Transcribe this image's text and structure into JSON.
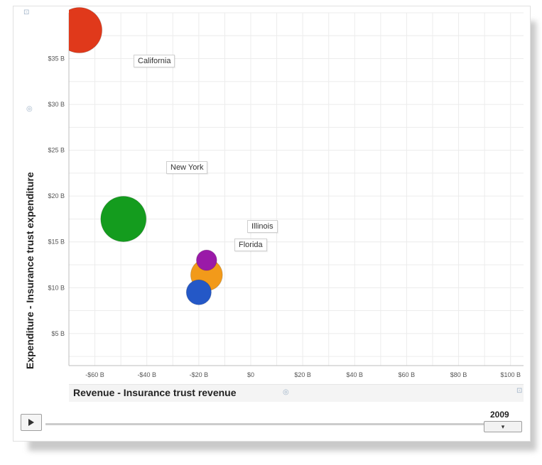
{
  "chart_data": {
    "type": "scatter",
    "title": "",
    "xlabel": "Revenue - Insurance trust revenue",
    "ylabel": "Expenditure - Insurance trust expenditure",
    "xlim": [
      -70,
      105
    ],
    "ylim": [
      1.5,
      40
    ],
    "x_ticks": [
      -60,
      -40,
      -20,
      0,
      20,
      40,
      60,
      80,
      100
    ],
    "x_tick_labels": [
      "-$60 B",
      "-$40 B",
      "-$20 B",
      "$0",
      "$20 B",
      "$40 B",
      "$60 B",
      "$80 B",
      "$100 B"
    ],
    "y_ticks": [
      5,
      10,
      15,
      20,
      25,
      30,
      35
    ],
    "y_tick_labels": [
      "$5 B",
      "$10 B",
      "$15 B",
      "$20 B",
      "$25 B",
      "$30 B",
      "$35 B"
    ],
    "grid": true,
    "year": "2009",
    "series": [
      {
        "name": "California",
        "x": -66,
        "y": 38.1,
        "radius_scale": 1.0,
        "color": "#e0391b"
      },
      {
        "name": "New York",
        "x": -49,
        "y": 17.5,
        "radius_scale": 1.0,
        "color": "#149c1e"
      },
      {
        "name": "Illinois",
        "x": -17,
        "y": 13.0,
        "radius_scale": 0.45,
        "color": "#9a1aa8"
      },
      {
        "name": "Florida",
        "x": -17,
        "y": 11.4,
        "radius_scale": 0.7,
        "color": "#f29a1a"
      },
      {
        "name": "",
        "x": -20,
        "y": 9.5,
        "radius_scale": 0.55,
        "color": "#2458c7"
      }
    ]
  },
  "labels": {
    "california": "California",
    "new_york": "New York",
    "illinois": "Illinois",
    "florida": "Florida"
  },
  "controls": {
    "year": "2009"
  }
}
